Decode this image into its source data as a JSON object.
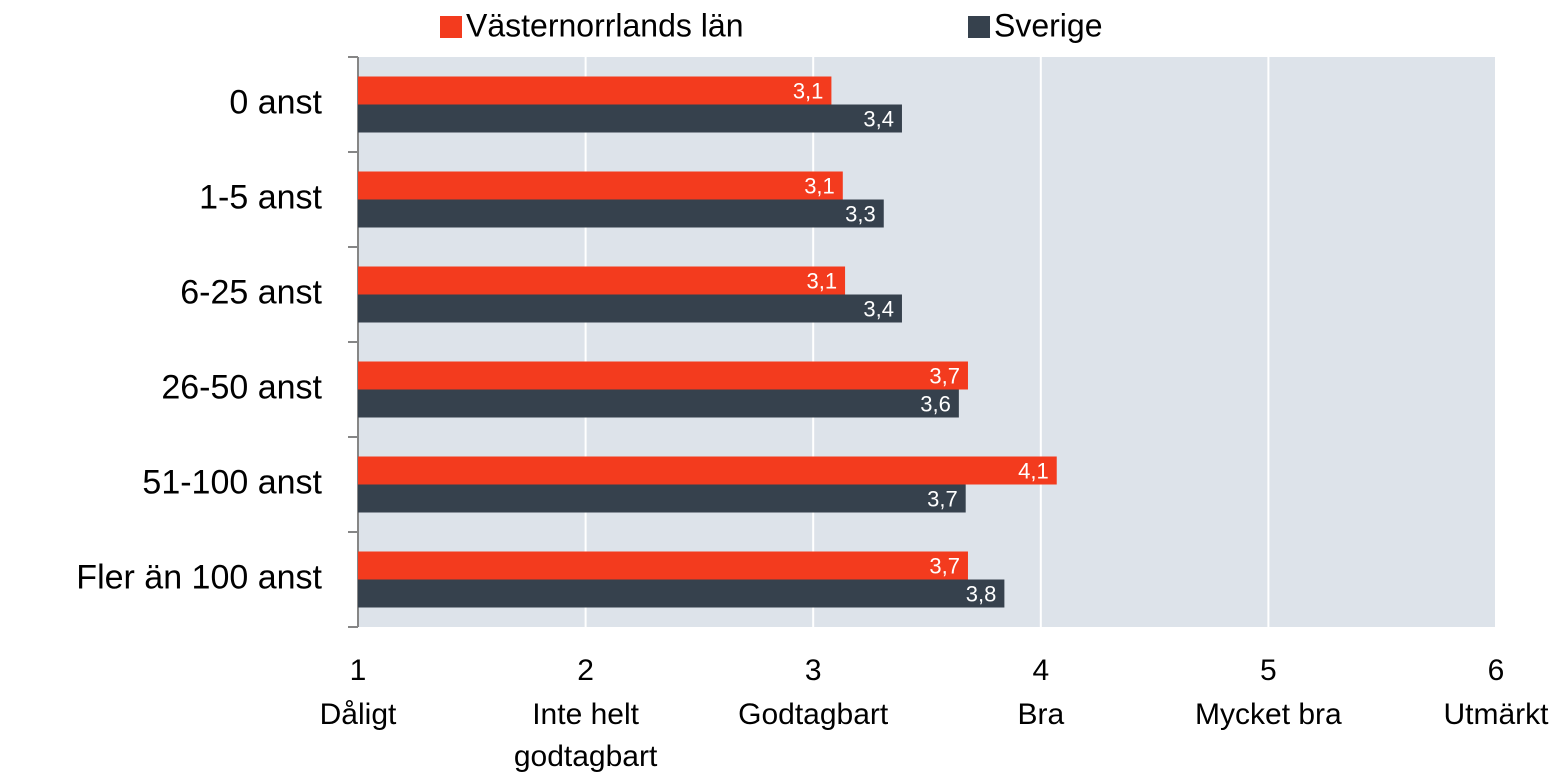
{
  "chart_data": {
    "type": "bar",
    "orientation": "horizontal",
    "categories": [
      "0 anst",
      "1-5 anst",
      "6-25 anst",
      "26-50 anst",
      "51-100 anst",
      "Fler än 100 anst"
    ],
    "series": [
      {
        "name": "Västernorrlands län",
        "color": "#f33b1e",
        "values": [
          3.08,
          3.13,
          3.14,
          3.68,
          4.07,
          3.68
        ],
        "value_labels": [
          "3,1",
          "3,1",
          "3,1",
          "3,7",
          "4,1",
          "3,7"
        ]
      },
      {
        "name": "Sverige",
        "color": "#36414d",
        "values": [
          3.39,
          3.31,
          3.39,
          3.64,
          3.67,
          3.84
        ],
        "value_labels": [
          "3,4",
          "3,3",
          "3,4",
          "3,6",
          "3,7",
          "3,8"
        ]
      }
    ],
    "xlim": [
      1,
      6
    ],
    "xticks": [
      1,
      2,
      3,
      4,
      5,
      6
    ],
    "xtick_sublabels": [
      [
        "Dåligt"
      ],
      [
        "Inte helt",
        "godtagbart"
      ],
      [
        "Godtagbart"
      ],
      [
        "Bra"
      ],
      [
        "Mycket bra"
      ],
      [
        "Utmärkt"
      ]
    ],
    "grid": true,
    "legend": "top"
  }
}
